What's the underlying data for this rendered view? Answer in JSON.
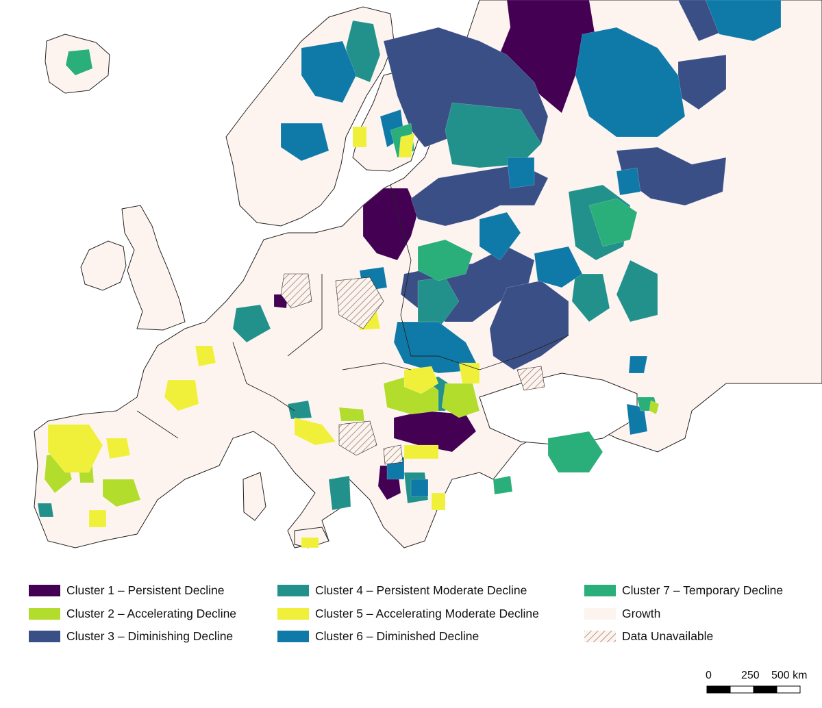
{
  "legend": {
    "items": [
      {
        "id": "c1",
        "label": "Cluster 1 – Persistent Decline",
        "color": "#440154"
      },
      {
        "id": "c2",
        "label": "Cluster 2 – Accelerating Decline",
        "color": "#b2dd2c"
      },
      {
        "id": "c3",
        "label": "Cluster 3 – Diminishing Decline",
        "color": "#3b4f87"
      },
      {
        "id": "c4",
        "label": "Cluster 4 – Persistent Moderate Decline",
        "color": "#23918b"
      },
      {
        "id": "c5",
        "label": "Cluster 5 – Accelerating Moderate Decline",
        "color": "#f0f03a"
      },
      {
        "id": "c6",
        "label": "Cluster 6 – Diminished Decline",
        "color": "#0f7aa8"
      },
      {
        "id": "c7",
        "label": "Cluster 7 – Temporary Decline",
        "color": "#2aae7a"
      },
      {
        "id": "growth",
        "label": "Growth",
        "color": "#fdf4f0"
      },
      {
        "id": "na",
        "label": "Data Unavailable",
        "color": "hatch"
      }
    ]
  },
  "scale": {
    "ticks": [
      "0",
      "250",
      "500 km"
    ]
  },
  "colors": {
    "background": "#ffffff",
    "border": "#222222",
    "hatch_line": "#9a7f6e"
  }
}
